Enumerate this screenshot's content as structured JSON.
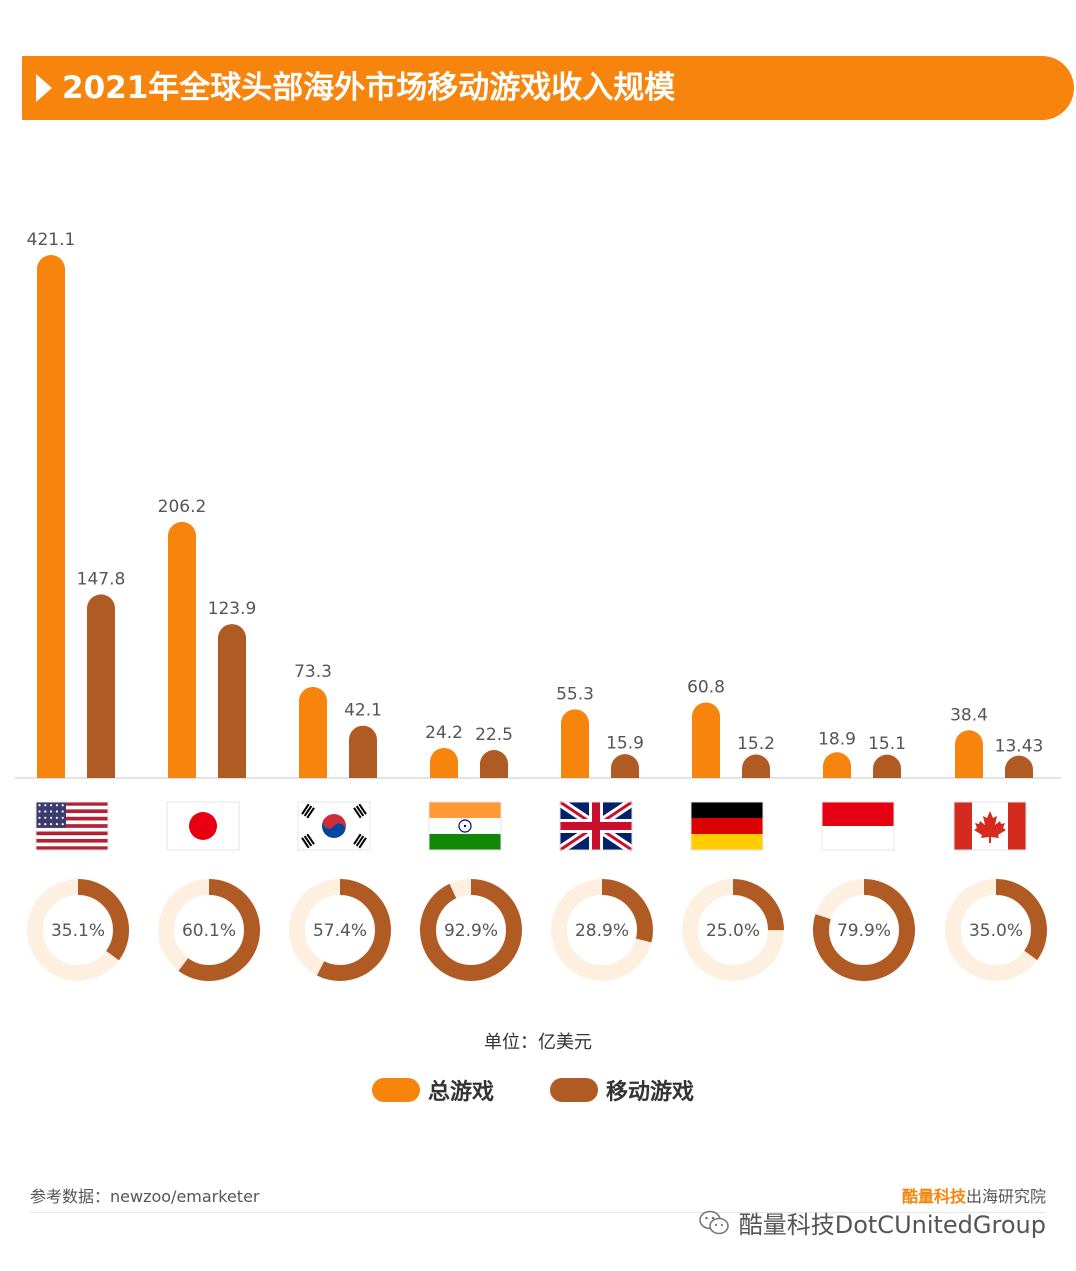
{
  "title": "2021年全球头部海外市场移动游戏收入规模",
  "unit_label": "单位：亿美元",
  "legend": [
    {
      "name": "总游戏",
      "color": "#f7850d"
    },
    {
      "name": "移动游戏",
      "color": "#b05a24"
    }
  ],
  "source": "参考数据：newzoo/emarketer",
  "brand": {
    "highlight": "酷量科技",
    "rest": "出海研究院"
  },
  "wechat_account": "酷量科技DotCUnitedGroup",
  "chart_data": {
    "type": "bar",
    "categories": [
      "US",
      "JP",
      "KR",
      "IN",
      "UK",
      "DE",
      "ID",
      "CA"
    ],
    "series": [
      {
        "name": "总游戏",
        "values": [
          421.1,
          206.2,
          73.3,
          24.2,
          55.3,
          60.8,
          18.9,
          38.4
        ],
        "labels": [
          "421.1",
          "206.2",
          "73.3",
          "24.2",
          "55.3",
          "60.8",
          "18.9",
          "38.4"
        ],
        "color": "#f7850d"
      },
      {
        "name": "移动游戏",
        "values": [
          147.8,
          123.9,
          42.1,
          22.5,
          15.9,
          15.2,
          15.1,
          13.43
        ],
        "labels": [
          "147.8",
          "123.9",
          "42.1",
          "22.5",
          "15.9",
          "15.2",
          "15.1",
          "13.43"
        ],
        "color": "#b05a24"
      }
    ],
    "mobile_share": [
      {
        "value": 0.351,
        "label": "35.1%"
      },
      {
        "value": 0.601,
        "label": "60.1%"
      },
      {
        "value": 0.574,
        "label": "57.4%"
      },
      {
        "value": 0.929,
        "label": "92.9%"
      },
      {
        "value": 0.289,
        "label": "28.9%"
      },
      {
        "value": 0.25,
        "label": "25.0%"
      },
      {
        "value": 0.799,
        "label": "79.9%"
      },
      {
        "value": 0.35,
        "label": "35.0%"
      }
    ],
    "ylim": [
      0,
      421.1
    ],
    "grid": false
  }
}
